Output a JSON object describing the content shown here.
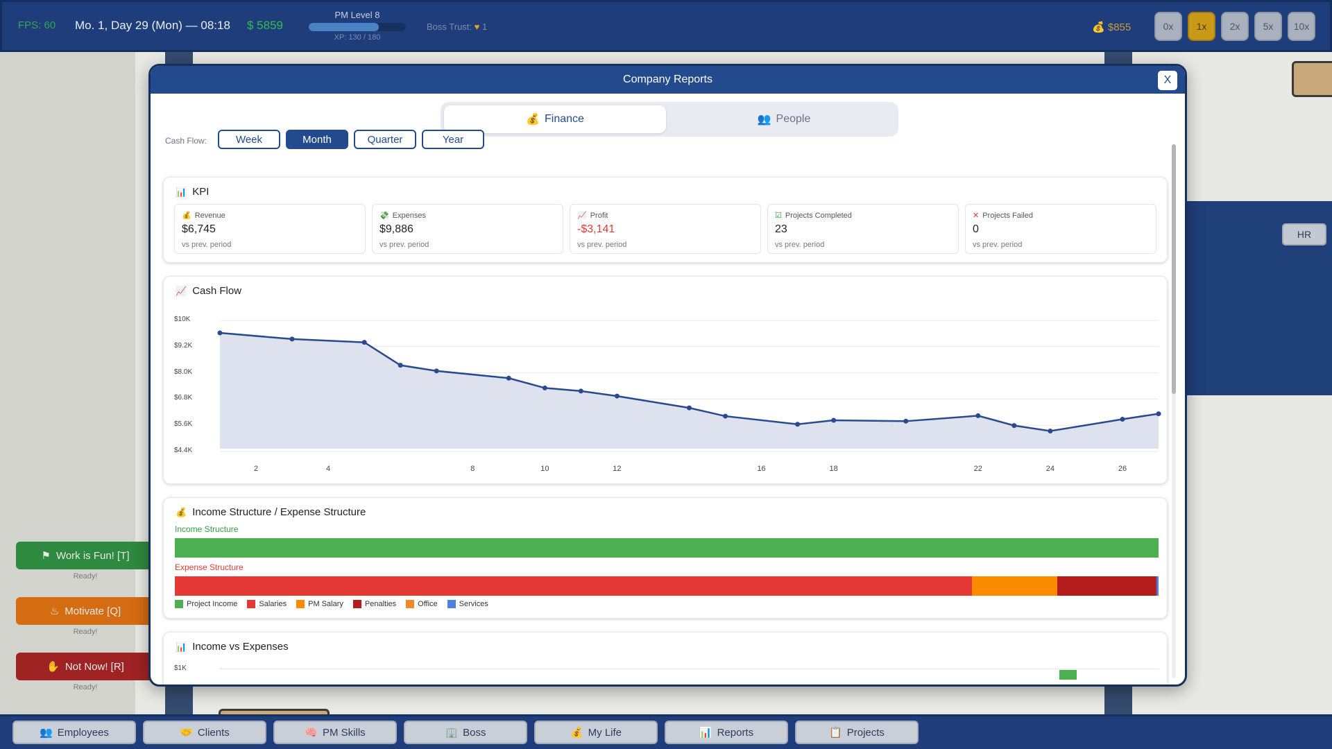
{
  "topbar": {
    "fps": "FPS: 60",
    "date": "Mo. 1, Day 29 (Mon) — 08:18",
    "money": "$ 5859",
    "pm_level": "PM Level 8",
    "xp_text": "XP: 130 / 180",
    "xp_fraction": 0.72,
    "boss_trust_label": "Boss Trust:",
    "boss_trust_value": "1",
    "coins": "$855",
    "speeds": [
      "0x",
      "1x",
      "2x",
      "5x",
      "10x"
    ],
    "active_speed": "1x"
  },
  "office": {
    "hr_label": "HR"
  },
  "actions": [
    {
      "label": "Work is Fun! [T]",
      "status": "Ready!",
      "color": "#2e8a3e"
    },
    {
      "label": "Motivate [Q]",
      "status": "Ready!",
      "color": "#d66c12"
    },
    {
      "label": "Not Now! [R]",
      "status": "Ready!",
      "color": "#a02323"
    }
  ],
  "bottom_nav": [
    "Employees",
    "Clients",
    "PM Skills",
    "Boss",
    "My Life",
    "Reports",
    "Projects"
  ],
  "modal": {
    "title": "Company Reports",
    "close_label": "X",
    "tabs": {
      "finance": "Finance",
      "people": "People"
    },
    "active_tab": "Finance",
    "cashflow_label": "Cash Flow:",
    "periods": [
      "Week",
      "Month",
      "Quarter",
      "Year"
    ],
    "active_period": "Month",
    "kpi": {
      "title": "KPI",
      "items": [
        {
          "label": "Revenue",
          "value": "$6,745",
          "sub": "vs prev. period"
        },
        {
          "label": "Expenses",
          "value": "$9,886",
          "sub": "vs prev. period"
        },
        {
          "label": "Profit",
          "value": "-$3,141",
          "sub": "vs prev. period"
        },
        {
          "label": "Projects Completed",
          "value": "23",
          "sub": "vs prev. period"
        },
        {
          "label": "Projects Failed",
          "value": "0",
          "sub": "vs prev. period"
        }
      ]
    },
    "cashflow": {
      "title": "Cash Flow"
    },
    "structure": {
      "title": "Income Structure / Expense Structure",
      "income_label": "Income Structure",
      "expense_label": "Expense Structure",
      "legend": [
        {
          "name": "Project Income",
          "color": "#4caf50"
        },
        {
          "name": "Salaries",
          "color": "#e53935"
        },
        {
          "name": "PM Salary",
          "color": "#fb8c00"
        },
        {
          "name": "Penalties",
          "color": "#b71c1c"
        },
        {
          "name": "Office",
          "color": "#f08a24"
        },
        {
          "name": "Services",
          "color": "#4f7fe0"
        }
      ],
      "income_shares": [
        {
          "name": "Project Income",
          "share": 1.0
        }
      ],
      "expense_shares": [
        {
          "name": "Salaries",
          "share": 0.81
        },
        {
          "name": "PM Salary",
          "share": 0.087
        },
        {
          "name": "Penalties",
          "share": 0.101
        },
        {
          "name": "Services",
          "share": 0.002
        }
      ]
    },
    "income_vs_expenses": {
      "title": "Income vs Expenses",
      "y_tick": "$1K"
    }
  },
  "chart_data": {
    "type": "area",
    "title": "Cash Flow",
    "x": [
      1,
      3,
      5,
      6,
      7,
      9,
      10,
      11,
      12,
      14,
      15,
      17,
      18,
      20,
      22,
      23,
      24,
      26,
      27
    ],
    "series": [
      {
        "values": [
          9700,
          9420,
          9270,
          8220,
          7960,
          7630,
          7180,
          7040,
          6810,
          6270,
          5890,
          5520,
          5700,
          5660,
          5910,
          5460,
          5210,
          5750,
          6000
        ]
      }
    ],
    "y_ticks": [
      "$10K",
      "$9.2K",
      "$8.0K",
      "$6.8K",
      "$5.6K",
      "$4.4K"
    ],
    "x_ticks": [
      "2",
      "4",
      "8",
      "10",
      "12",
      "16",
      "18",
      "22",
      "24",
      "26"
    ],
    "ylim": [
      4400,
      10400
    ],
    "grid": true,
    "colors": {
      "line": "#2a4a8f",
      "fill": "#dde2ee"
    }
  }
}
